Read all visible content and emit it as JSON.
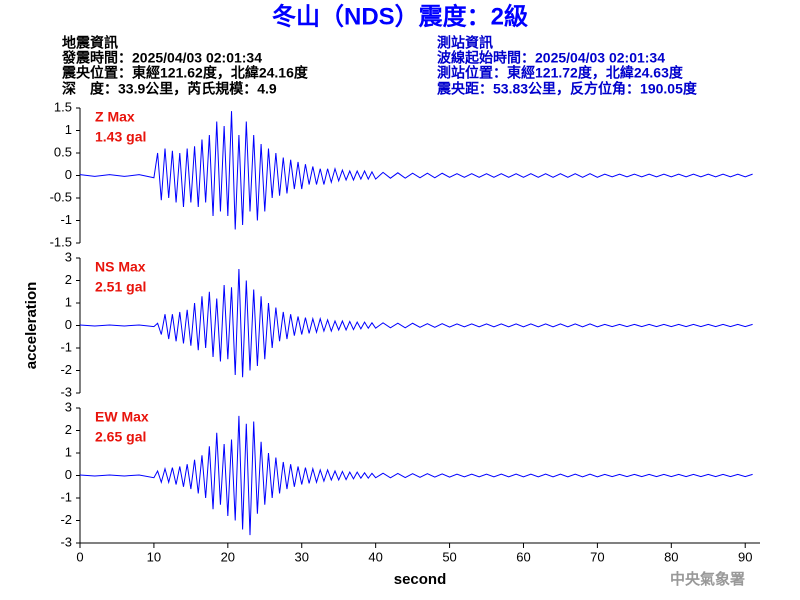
{
  "header": {
    "title": "冬山（NDS）震度：2級",
    "left": [
      "地震資訊",
      "發震時間：2025/04/03 02:01:34",
      "震央位置：東經121.62度，北緯24.16度",
      "深　度：33.9公里，芮氏規模：4.9"
    ],
    "right": [
      "測站資訊",
      "波線起始時間：2025/04/03 02:01:34",
      "測站位置：東經121.72度，北緯24.63度",
      "震央距：53.83公里，反方位角：190.05度"
    ]
  },
  "footer": "中央氣象署",
  "chart_data": [
    {
      "type": "line",
      "annotations": [
        "Z Max",
        "1.43 gal"
      ],
      "color": "#0000ff",
      "xlim": [
        0,
        92
      ],
      "ylim": [
        -1.5,
        1.5
      ],
      "yticks": [
        -1.5,
        -1,
        -0.5,
        0,
        0.5,
        1,
        1.5
      ],
      "x": [
        0,
        2,
        4,
        6,
        8,
        10,
        10.5,
        11,
        11.5,
        12,
        12.5,
        13,
        13.5,
        14,
        14.5,
        15,
        15.5,
        16,
        16.5,
        17,
        17.5,
        18,
        18.5,
        19,
        19.5,
        20,
        20.5,
        21,
        21.5,
        22,
        22.5,
        23,
        23.5,
        24,
        24.5,
        25,
        25.5,
        26,
        26.5,
        27,
        27.5,
        28,
        28.5,
        29,
        29.5,
        30,
        30.5,
        31,
        31.5,
        32,
        32.5,
        33,
        33.5,
        34,
        34.5,
        35,
        35.5,
        36,
        36.5,
        37,
        37.5,
        38,
        38.5,
        39,
        39.5,
        40,
        41,
        42,
        43,
        44,
        45,
        46,
        47,
        48,
        49,
        50,
        51,
        52,
        53,
        54,
        55,
        56,
        57,
        58,
        59,
        60,
        61,
        62,
        63,
        64,
        65,
        66,
        67,
        68,
        69,
        70,
        71,
        72,
        73,
        74,
        75,
        76,
        77,
        78,
        79,
        80,
        81,
        82,
        83,
        84,
        85,
        86,
        87,
        88,
        89,
        90,
        91
      ],
      "values": [
        0.02,
        -0.02,
        0.02,
        -0.02,
        0.02,
        -0.05,
        0.5,
        -0.55,
        0.6,
        -0.5,
        0.55,
        -0.6,
        0.5,
        -0.7,
        0.6,
        -0.6,
        0.65,
        -0.7,
        0.8,
        -0.6,
        0.9,
        -0.9,
        1.2,
        -0.8,
        1.1,
        -0.9,
        1.43,
        -1.2,
        0.9,
        -1.1,
        1.2,
        -0.8,
        0.9,
        -1.0,
        0.7,
        -0.8,
        0.6,
        -0.5,
        0.5,
        -0.45,
        0.4,
        -0.4,
        0.35,
        -0.3,
        0.3,
        -0.3,
        0.25,
        -0.2,
        0.2,
        -0.2,
        0.15,
        -0.2,
        0.15,
        -0.15,
        0.15,
        -0.12,
        0.12,
        -0.1,
        0.1,
        -0.1,
        0.1,
        -0.08,
        0.1,
        -0.08,
        0.08,
        -0.08,
        0.07,
        -0.06,
        0.06,
        -0.06,
        0.05,
        -0.05,
        0.05,
        -0.05,
        0.05,
        -0.04,
        0.04,
        -0.04,
        0.04,
        -0.04,
        0.04,
        -0.04,
        0.04,
        -0.04,
        0.04,
        -0.04,
        0.04,
        -0.04,
        0.04,
        -0.04,
        0.04,
        -0.04,
        0.04,
        -0.04,
        0.04,
        -0.04,
        0.03,
        -0.03,
        0.03,
        -0.03,
        0.03,
        -0.03,
        0.03,
        -0.03,
        0.03,
        -0.03,
        0.03,
        -0.03,
        0.03,
        -0.03,
        0.03,
        -0.03,
        0.03,
        -0.03,
        0.03,
        -0.03,
        0.03
      ]
    },
    {
      "type": "line",
      "annotations": [
        "NS Max",
        "2.51 gal"
      ],
      "color": "#0000ff",
      "y_label": "acceleration",
      "xlim": [
        0,
        92
      ],
      "ylim": [
        -3,
        3
      ],
      "yticks": [
        -3,
        -2,
        -1,
        0,
        1,
        2,
        3
      ],
      "x": [
        0,
        2,
        4,
        6,
        8,
        10,
        10.5,
        11,
        11.5,
        12,
        12.5,
        13,
        13.5,
        14,
        14.5,
        15,
        15.5,
        16,
        16.5,
        17,
        17.5,
        18,
        18.5,
        19,
        19.5,
        20,
        20.5,
        21,
        21.5,
        22,
        22.5,
        23,
        23.5,
        24,
        24.5,
        25,
        25.5,
        26,
        26.5,
        27,
        27.5,
        28,
        28.5,
        29,
        29.5,
        30,
        30.5,
        31,
        31.5,
        32,
        32.5,
        33,
        33.5,
        34,
        34.5,
        35,
        35.5,
        36,
        36.5,
        37,
        37.5,
        38,
        38.5,
        39,
        39.5,
        40,
        41,
        42,
        43,
        44,
        45,
        46,
        47,
        48,
        49,
        50,
        51,
        52,
        53,
        54,
        55,
        56,
        57,
        58,
        59,
        60,
        61,
        62,
        63,
        64,
        65,
        66,
        67,
        68,
        69,
        70,
        71,
        72,
        73,
        74,
        75,
        76,
        77,
        78,
        79,
        80,
        81,
        82,
        83,
        84,
        85,
        86,
        87,
        88,
        89,
        90,
        91
      ],
      "values": [
        0.02,
        -0.02,
        0.02,
        -0.02,
        0.02,
        -0.05,
        0.1,
        -0.4,
        0.5,
        -0.6,
        0.5,
        -0.7,
        0.6,
        -0.8,
        0.7,
        -0.9,
        1.0,
        -1.1,
        1.3,
        -1.0,
        1.5,
        -1.4,
        1.2,
        -1.6,
        1.8,
        -1.5,
        1.7,
        -2.2,
        2.51,
        -2.3,
        2.0,
        -2.0,
        1.6,
        -1.8,
        1.3,
        -1.5,
        1.0,
        -1.0,
        0.8,
        -0.7,
        0.6,
        -0.6,
        0.5,
        -0.45,
        0.4,
        -0.4,
        0.35,
        -0.35,
        0.3,
        -0.3,
        0.3,
        -0.25,
        0.25,
        -0.25,
        0.2,
        -0.2,
        0.2,
        -0.2,
        0.18,
        -0.18,
        0.15,
        -0.15,
        0.15,
        -0.12,
        0.12,
        -0.12,
        0.12,
        -0.1,
        0.1,
        -0.1,
        0.1,
        -0.08,
        0.08,
        -0.08,
        0.08,
        -0.07,
        0.07,
        -0.06,
        0.07,
        -0.06,
        0.07,
        -0.06,
        0.07,
        -0.06,
        0.07,
        -0.06,
        0.07,
        -0.06,
        0.07,
        -0.06,
        0.07,
        -0.06,
        0.07,
        -0.06,
        0.07,
        -0.06,
        0.05,
        -0.05,
        0.05,
        -0.05,
        0.05,
        -0.05,
        0.05,
        -0.05,
        0.05,
        -0.05,
        0.05,
        -0.05,
        0.05,
        -0.05,
        0.05,
        -0.05,
        0.05,
        -0.05,
        0.05,
        -0.05,
        0.05
      ]
    },
    {
      "type": "line",
      "annotations": [
        "EW Max",
        "2.65 gal"
      ],
      "color": "#0000ff",
      "x_label": "second",
      "xlim": [
        0,
        92
      ],
      "xticks": [
        0,
        10,
        20,
        30,
        40,
        50,
        60,
        70,
        80,
        90
      ],
      "ylim": [
        -3,
        3
      ],
      "yticks": [
        -3,
        -2,
        -1,
        0,
        1,
        2,
        3
      ],
      "x": [
        0,
        2,
        4,
        6,
        8,
        10,
        10.5,
        11,
        11.5,
        12,
        12.5,
        13,
        13.5,
        14,
        14.5,
        15,
        15.5,
        16,
        16.5,
        17,
        17.5,
        18,
        18.5,
        19,
        19.5,
        20,
        20.5,
        21,
        21.5,
        22,
        22.5,
        23,
        23.5,
        24,
        24.5,
        25,
        25.5,
        26,
        26.5,
        27,
        27.5,
        28,
        28.5,
        29,
        29.5,
        30,
        30.5,
        31,
        31.5,
        32,
        32.5,
        33,
        33.5,
        34,
        34.5,
        35,
        35.5,
        36,
        36.5,
        37,
        37.5,
        38,
        38.5,
        39,
        39.5,
        40,
        41,
        42,
        43,
        44,
        45,
        46,
        47,
        48,
        49,
        50,
        51,
        52,
        53,
        54,
        55,
        56,
        57,
        58,
        59,
        60,
        61,
        62,
        63,
        64,
        65,
        66,
        67,
        68,
        69,
        70,
        71,
        72,
        73,
        74,
        75,
        76,
        77,
        78,
        79,
        80,
        81,
        82,
        83,
        84,
        85,
        86,
        87,
        88,
        89,
        90,
        91
      ],
      "values": [
        0.02,
        -0.02,
        0.02,
        -0.02,
        0.02,
        -0.1,
        0.2,
        -0.3,
        0.3,
        -0.3,
        0.35,
        -0.4,
        0.4,
        -0.5,
        0.5,
        -0.6,
        0.7,
        -0.8,
        0.9,
        -1.0,
        1.3,
        -1.5,
        1.9,
        -1.3,
        1.4,
        -1.8,
        1.6,
        -2.0,
        2.65,
        -2.4,
        2.3,
        -2.65,
        2.4,
        -1.7,
        1.5,
        -1.3,
        1.0,
        -1.0,
        0.8,
        -0.8,
        0.6,
        -0.6,
        0.5,
        -0.5,
        0.4,
        -0.4,
        0.35,
        -0.35,
        0.3,
        -0.3,
        0.25,
        -0.25,
        0.25,
        -0.2,
        0.2,
        -0.2,
        0.18,
        -0.18,
        0.15,
        -0.15,
        0.15,
        -0.12,
        0.12,
        -0.12,
        0.1,
        -0.1,
        0.1,
        -0.1,
        0.09,
        -0.09,
        0.08,
        -0.08,
        0.08,
        -0.07,
        0.07,
        -0.07,
        0.06,
        -0.06,
        0.06,
        -0.06,
        0.06,
        -0.06,
        0.06,
        -0.06,
        0.06,
        -0.06,
        0.06,
        -0.06,
        0.06,
        -0.06,
        0.06,
        -0.06,
        0.06,
        -0.06,
        0.06,
        -0.06,
        0.05,
        -0.05,
        0.05,
        -0.05,
        0.05,
        -0.05,
        0.05,
        -0.05,
        0.05,
        -0.05,
        0.05,
        -0.05,
        0.05,
        -0.05,
        0.05,
        -0.05,
        0.05,
        -0.05,
        0.05,
        -0.05,
        0.05
      ]
    }
  ]
}
